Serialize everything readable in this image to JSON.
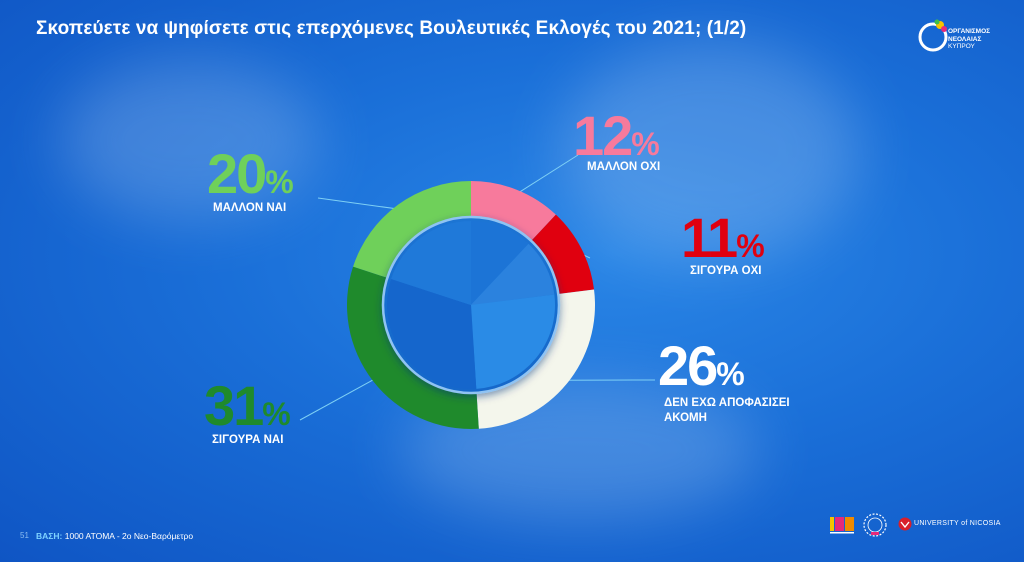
{
  "title": "Σκοπεύετε να ψηφίσετε στις επερχόμενες Βουλευτικές Εκλογές του 2021;  (1/2)",
  "logo": {
    "line1": "ΟΡΓΑΝΙΣΜΟΣ",
    "line2": "ΝΕΟΛΑΙΑΣ",
    "line3": "ΚΥΠΡΟΥ"
  },
  "footer": {
    "page": "51",
    "base_key": "ΒΑΣΗ:",
    "base_value": "1000 ΑΤΟΜΑ - 2ο Νεο-Βαρόμετρο"
  },
  "sponsors": {
    "university": "UNIVERSITY of NICOSIA"
  },
  "chart_data": {
    "type": "pie",
    "style": "donut",
    "title": "Σκοπεύετε να ψηφίσετε στις επερχόμενες Βουλευτικές Εκλογές του 2021;  (1/2)",
    "unit": "%",
    "slices": [
      {
        "label": "ΜΑΛΛΟΝ ΟΧΙ",
        "value": 12,
        "color": "#f77a9c"
      },
      {
        "label": "ΣΙΓΟΥΡΑ ΟΧΙ",
        "value": 11,
        "color": "#e0000f"
      },
      {
        "label": "ΔΕΝ ΕΧΩ ΑΠΟΦΑΣΙΣΕΙ ΑΚΟΜΗ",
        "value": 26,
        "color": "#f4f6ec"
      },
      {
        "label": "ΣΙΓΟΥΡΑ ΝΑΙ",
        "value": 31,
        "color": "#1f8a2c"
      },
      {
        "label": "ΜΑΛΛΟΝ ΝΑΙ",
        "value": 20,
        "color": "#6fd05a"
      }
    ],
    "label_colors": [
      "#f77a9c",
      "#e0000f",
      "#ffffff",
      "#1f8a2c",
      "#6fd05a"
    ],
    "legend": "none"
  }
}
